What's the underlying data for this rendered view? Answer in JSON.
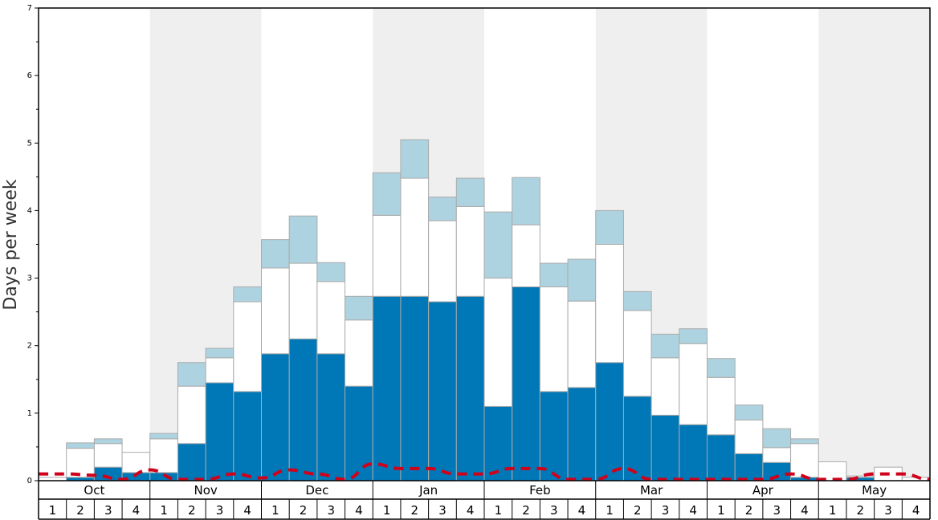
{
  "chart_data": {
    "type": "bar",
    "stacked": true,
    "ylabel": "Days per week",
    "ylim": [
      0,
      7
    ],
    "y_ticks": [
      "0",
      "1",
      "2",
      "3",
      "4",
      "5",
      "6",
      "7"
    ],
    "months": [
      "Oct",
      "Nov",
      "Dec",
      "Jan",
      "Feb",
      "Mar",
      "Apr",
      "May"
    ],
    "weeks_per_month": [
      "1",
      "2",
      "3",
      "4"
    ],
    "shaded_months": [
      "Nov",
      "Jan",
      "Mar",
      "May"
    ],
    "colors": {
      "dark": "#0077b6",
      "white": "#ffffff",
      "light": "#aed3e0",
      "dashed_line": "#d0021b",
      "shade": "#efefef",
      "bar_border": "#aaaaaa"
    },
    "series": [
      {
        "color": "#0077b6",
        "values": [
          0,
          0.05,
          0.2,
          0.12,
          0.12,
          0.55,
          1.45,
          1.32,
          1.88,
          2.1,
          1.88,
          1.4,
          2.73,
          2.73,
          2.65,
          2.73,
          1.1,
          2.87,
          1.32,
          1.38,
          1.75,
          1.25,
          0.97,
          0.83,
          0.68,
          0.4,
          0.27,
          0.05,
          0,
          0.05,
          0,
          0
        ]
      },
      {
        "color": "#ffffff",
        "values": [
          0.05,
          0.43,
          0.35,
          0.3,
          0.5,
          0.85,
          0.37,
          1.33,
          1.27,
          1.12,
          1.07,
          0.98,
          1.2,
          1.75,
          1.2,
          1.33,
          1.9,
          0.92,
          1.55,
          1.28,
          1.75,
          1.27,
          0.85,
          1.2,
          0.85,
          0.5,
          0.22,
          0.5,
          0.28,
          0.02,
          0.2,
          0.05
        ]
      },
      {
        "color": "#aed3e0",
        "values": [
          0,
          0.08,
          0.07,
          0,
          0.08,
          0.35,
          0.14,
          0.22,
          0.42,
          0.7,
          0.28,
          0.35,
          0.63,
          0.57,
          0.35,
          0.42,
          0.98,
          0.7,
          0.35,
          0.62,
          0.5,
          0.28,
          0.35,
          0.22,
          0.28,
          0.22,
          0.28,
          0.07,
          0,
          0,
          0,
          0
        ]
      }
    ],
    "dashed_line_values": [
      0.1,
      0.1,
      0.08,
      0.02,
      0.16,
      0.02,
      0.02,
      0.1,
      0.04,
      0.16,
      0.1,
      0.02,
      0.25,
      0.18,
      0.18,
      0.1,
      0.1,
      0.18,
      0.18,
      0.02,
      0.02,
      0.18,
      0.02,
      0.02,
      0.02,
      0.02,
      0.02,
      0.1,
      0.02,
      0.02,
      0.1,
      0.1,
      0.02
    ]
  }
}
